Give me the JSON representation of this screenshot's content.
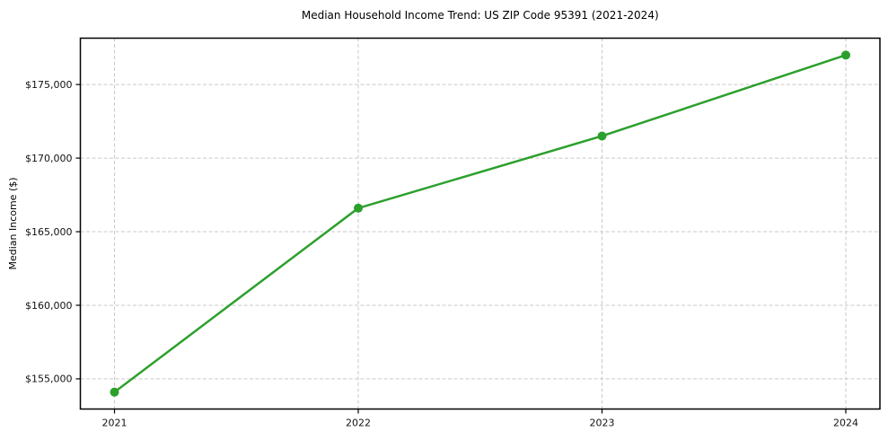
{
  "chart_data": {
    "type": "line",
    "title": "Median Household Income Trend: US ZIP Code 95391 (2021-2024)",
    "xlabel": "",
    "ylabel": "Median Income ($)",
    "x": [
      2021,
      2022,
      2023,
      2024
    ],
    "x_tick_labels": [
      "2021",
      "2022",
      "2023",
      "2024"
    ],
    "y_ticks": [
      155000,
      160000,
      165000,
      170000,
      175000
    ],
    "y_tick_labels": [
      "$155,000",
      "$160,000",
      "$165,000",
      "$170,000",
      "$175,000"
    ],
    "series": [
      {
        "name": "Median Household Income",
        "values": [
          154100,
          166600,
          171500,
          177000
        ]
      }
    ],
    "xlim": [
      2020.86,
      2024.14
    ],
    "ylim": [
      152950,
      178150
    ],
    "grid": true,
    "legend_position": "none",
    "line_color": "#2ca02c",
    "marker": "circle",
    "background_color": "#ffffff"
  }
}
